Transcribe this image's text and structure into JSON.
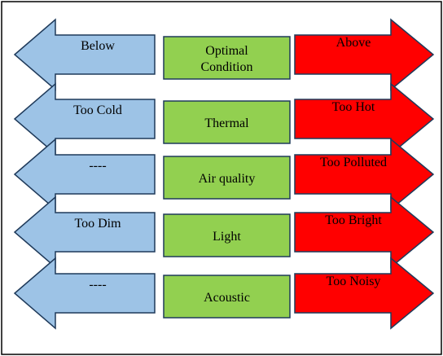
{
  "colors": {
    "below": "#9dc3e6",
    "optimal": "#92d050",
    "above": "#ff0000",
    "stroke": "#1f3a5a"
  },
  "rows": [
    {
      "below": "Below",
      "optimal_lines": [
        "Optimal",
        "Condition"
      ],
      "above": "Above"
    },
    {
      "below": "Too Cold",
      "optimal_lines": [
        "Thermal"
      ],
      "above": "Too Hot"
    },
    {
      "below": "----",
      "optimal_lines": [
        "Air quality"
      ],
      "above": "Too Polluted"
    },
    {
      "below": "Too Dim",
      "optimal_lines": [
        "Light"
      ],
      "above": "Too Bright"
    },
    {
      "below": "----",
      "optimal_lines": [
        "Acoustic"
      ],
      "above": "Too Noisy"
    }
  ]
}
